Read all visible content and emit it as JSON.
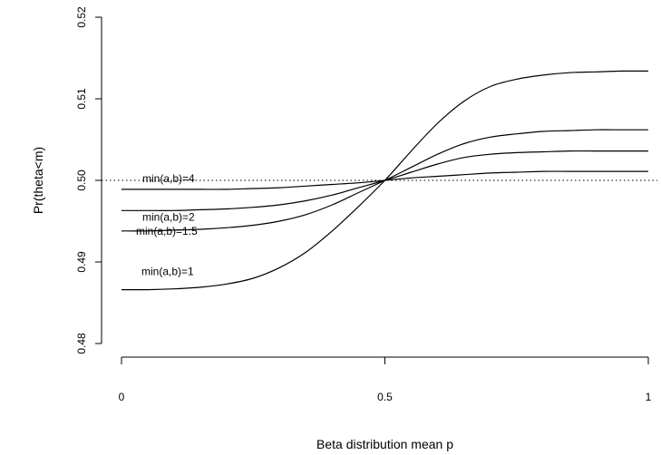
{
  "chart_data": {
    "type": "line",
    "title": "",
    "xlabel": "Beta distribution mean p",
    "ylabel": "Pr(theta<m)",
    "xlim": [
      0,
      1
    ],
    "ylim": [
      0.48,
      0.52
    ],
    "xticks": [
      0,
      0.5,
      1
    ],
    "xtick_labels": [
      "0",
      "0.5",
      "1"
    ],
    "yticks": [
      0.48,
      0.49,
      0.5,
      0.51,
      0.52
    ],
    "ytick_labels": [
      "0.48",
      "0.49",
      "0.50",
      "0.51",
      "0.52"
    ],
    "grid": false,
    "reference_line": {
      "y": 0.5,
      "style": "dotted"
    },
    "series": [
      {
        "name": "min(a,b)=4",
        "x": [
          0,
          0.05,
          0.1,
          0.15,
          0.2,
          0.25,
          0.3,
          0.35,
          0.4,
          0.45,
          0.5,
          0.55,
          0.6,
          0.65,
          0.7,
          0.75,
          0.8,
          0.85,
          0.9,
          0.95,
          1
        ],
        "y": [
          0.4989,
          0.4989,
          0.4989,
          0.4989,
          0.4989,
          0.499,
          0.4991,
          0.4993,
          0.4995,
          0.4997,
          0.5,
          0.5003,
          0.5005,
          0.5007,
          0.5009,
          0.501,
          0.5011,
          0.5011,
          0.5011,
          0.5011,
          0.5011
        ]
      },
      {
        "name": "min(a,b)=2",
        "x": [
          0,
          0.05,
          0.1,
          0.15,
          0.2,
          0.25,
          0.3,
          0.35,
          0.4,
          0.45,
          0.5,
          0.55,
          0.6,
          0.65,
          0.7,
          0.75,
          0.8,
          0.85,
          0.9,
          0.95,
          1
        ],
        "y": [
          0.4963,
          0.4963,
          0.4963,
          0.4964,
          0.4965,
          0.4967,
          0.497,
          0.4975,
          0.4982,
          0.4991,
          0.5,
          0.501,
          0.502,
          0.5028,
          0.5032,
          0.5034,
          0.5035,
          0.5036,
          0.5036,
          0.5036,
          0.5036
        ]
      },
      {
        "name": "min(a,b)=1.5",
        "x": [
          0,
          0.05,
          0.1,
          0.15,
          0.2,
          0.25,
          0.3,
          0.35,
          0.4,
          0.45,
          0.5,
          0.55,
          0.6,
          0.65,
          0.7,
          0.75,
          0.8,
          0.85,
          0.9,
          0.95,
          1
        ],
        "y": [
          0.4938,
          0.4938,
          0.4939,
          0.494,
          0.4942,
          0.4945,
          0.495,
          0.4958,
          0.497,
          0.4985,
          0.5,
          0.5016,
          0.5032,
          0.5045,
          0.5053,
          0.5057,
          0.506,
          0.5061,
          0.5062,
          0.5062,
          0.5062
        ]
      },
      {
        "name": "min(a,b)=1",
        "x": [
          0,
          0.05,
          0.1,
          0.15,
          0.2,
          0.25,
          0.3,
          0.35,
          0.4,
          0.45,
          0.5,
          0.55,
          0.6,
          0.65,
          0.7,
          0.75,
          0.8,
          0.85,
          0.9,
          0.95,
          1
        ],
        "y": [
          0.4866,
          0.4866,
          0.4867,
          0.4869,
          0.4873,
          0.488,
          0.4893,
          0.4912,
          0.4938,
          0.4968,
          0.5,
          0.5036,
          0.507,
          0.5097,
          0.5115,
          0.5124,
          0.5129,
          0.5132,
          0.5133,
          0.5134,
          0.5134
        ]
      }
    ]
  }
}
